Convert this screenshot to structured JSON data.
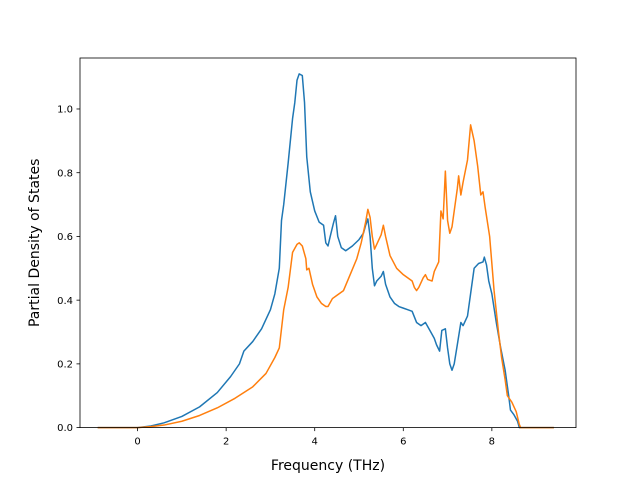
{
  "chart_data": {
    "type": "line",
    "title": "",
    "xlabel": "Frequency (THz)",
    "ylabel": "Partial Density of States",
    "xlim": [
      -1.3,
      9.9
    ],
    "ylim": [
      0.0,
      1.16
    ],
    "xticks": [
      0,
      2,
      4,
      6,
      8
    ],
    "yticks": [
      0.0,
      0.2,
      0.4,
      0.6,
      0.8,
      1.0
    ],
    "xtick_labels": [
      "0",
      "2",
      "4",
      "6",
      "8"
    ],
    "ytick_labels": [
      "0.0",
      "0.2",
      "0.4",
      "0.6",
      "0.8",
      "1.0"
    ],
    "grid": false,
    "legend": "none",
    "series": [
      {
        "color": "#1f77b4",
        "points": [
          [
            -0.9,
            0.0
          ],
          [
            0.0,
            0.0
          ],
          [
            0.3,
            0.005
          ],
          [
            0.6,
            0.015
          ],
          [
            1.0,
            0.035
          ],
          [
            1.4,
            0.065
          ],
          [
            1.8,
            0.11
          ],
          [
            2.1,
            0.16
          ],
          [
            2.3,
            0.2
          ],
          [
            2.4,
            0.24
          ],
          [
            2.6,
            0.27
          ],
          [
            2.8,
            0.31
          ],
          [
            3.0,
            0.37
          ],
          [
            3.1,
            0.42
          ],
          [
            3.2,
            0.5
          ],
          [
            3.25,
            0.65
          ],
          [
            3.3,
            0.7
          ],
          [
            3.4,
            0.83
          ],
          [
            3.5,
            0.97
          ],
          [
            3.55,
            1.02
          ],
          [
            3.6,
            1.09
          ],
          [
            3.65,
            1.11
          ],
          [
            3.72,
            1.105
          ],
          [
            3.77,
            1.02
          ],
          [
            3.82,
            0.85
          ],
          [
            3.9,
            0.74
          ],
          [
            4.0,
            0.68
          ],
          [
            4.1,
            0.645
          ],
          [
            4.2,
            0.635
          ],
          [
            4.25,
            0.58
          ],
          [
            4.3,
            0.57
          ],
          [
            4.35,
            0.6
          ],
          [
            4.42,
            0.64
          ],
          [
            4.47,
            0.665
          ],
          [
            4.52,
            0.6
          ],
          [
            4.6,
            0.565
          ],
          [
            4.7,
            0.555
          ],
          [
            4.85,
            0.57
          ],
          [
            5.0,
            0.59
          ],
          [
            5.1,
            0.61
          ],
          [
            5.15,
            0.635
          ],
          [
            5.2,
            0.655
          ],
          [
            5.25,
            0.6
          ],
          [
            5.3,
            0.5
          ],
          [
            5.35,
            0.445
          ],
          [
            5.4,
            0.46
          ],
          [
            5.5,
            0.475
          ],
          [
            5.55,
            0.49
          ],
          [
            5.6,
            0.45
          ],
          [
            5.7,
            0.41
          ],
          [
            5.8,
            0.39
          ],
          [
            5.9,
            0.38
          ],
          [
            6.0,
            0.375
          ],
          [
            6.1,
            0.37
          ],
          [
            6.2,
            0.365
          ],
          [
            6.3,
            0.33
          ],
          [
            6.4,
            0.32
          ],
          [
            6.5,
            0.33
          ],
          [
            6.6,
            0.305
          ],
          [
            6.7,
            0.28
          ],
          [
            6.75,
            0.26
          ],
          [
            6.82,
            0.24
          ],
          [
            6.87,
            0.305
          ],
          [
            6.95,
            0.31
          ],
          [
            7.0,
            0.25
          ],
          [
            7.05,
            0.2
          ],
          [
            7.1,
            0.18
          ],
          [
            7.15,
            0.2
          ],
          [
            7.22,
            0.26
          ],
          [
            7.3,
            0.33
          ],
          [
            7.35,
            0.32
          ],
          [
            7.45,
            0.35
          ],
          [
            7.52,
            0.42
          ],
          [
            7.6,
            0.5
          ],
          [
            7.7,
            0.515
          ],
          [
            7.8,
            0.52
          ],
          [
            7.83,
            0.535
          ],
          [
            7.88,
            0.51
          ],
          [
            7.93,
            0.46
          ],
          [
            8.0,
            0.42
          ],
          [
            8.1,
            0.33
          ],
          [
            8.2,
            0.25
          ],
          [
            8.3,
            0.18
          ],
          [
            8.38,
            0.1
          ],
          [
            8.42,
            0.055
          ],
          [
            8.5,
            0.04
          ],
          [
            8.58,
            0.02
          ],
          [
            8.62,
            0.0
          ],
          [
            9.4,
            0.0
          ]
        ]
      },
      {
        "color": "#ff7f0e",
        "points": [
          [
            -0.9,
            0.0
          ],
          [
            0.0,
            0.0
          ],
          [
            0.3,
            0.003
          ],
          [
            0.6,
            0.008
          ],
          [
            1.0,
            0.02
          ],
          [
            1.4,
            0.038
          ],
          [
            1.8,
            0.062
          ],
          [
            2.2,
            0.092
          ],
          [
            2.6,
            0.128
          ],
          [
            2.9,
            0.17
          ],
          [
            3.1,
            0.22
          ],
          [
            3.2,
            0.25
          ],
          [
            3.3,
            0.37
          ],
          [
            3.4,
            0.44
          ],
          [
            3.5,
            0.55
          ],
          [
            3.6,
            0.575
          ],
          [
            3.65,
            0.58
          ],
          [
            3.72,
            0.57
          ],
          [
            3.8,
            0.53
          ],
          [
            3.82,
            0.495
          ],
          [
            3.87,
            0.5
          ],
          [
            3.95,
            0.45
          ],
          [
            4.05,
            0.41
          ],
          [
            4.15,
            0.39
          ],
          [
            4.25,
            0.38
          ],
          [
            4.3,
            0.38
          ],
          [
            4.4,
            0.405
          ],
          [
            4.5,
            0.415
          ],
          [
            4.65,
            0.43
          ],
          [
            4.8,
            0.48
          ],
          [
            4.95,
            0.53
          ],
          [
            5.05,
            0.58
          ],
          [
            5.15,
            0.645
          ],
          [
            5.2,
            0.685
          ],
          [
            5.25,
            0.66
          ],
          [
            5.3,
            0.6
          ],
          [
            5.35,
            0.56
          ],
          [
            5.45,
            0.59
          ],
          [
            5.5,
            0.605
          ],
          [
            5.55,
            0.635
          ],
          [
            5.6,
            0.6
          ],
          [
            5.7,
            0.54
          ],
          [
            5.85,
            0.5
          ],
          [
            6.0,
            0.48
          ],
          [
            6.2,
            0.46
          ],
          [
            6.25,
            0.44
          ],
          [
            6.3,
            0.43
          ],
          [
            6.35,
            0.44
          ],
          [
            6.45,
            0.47
          ],
          [
            6.5,
            0.48
          ],
          [
            6.55,
            0.465
          ],
          [
            6.65,
            0.46
          ],
          [
            6.7,
            0.49
          ],
          [
            6.8,
            0.52
          ],
          [
            6.85,
            0.68
          ],
          [
            6.9,
            0.655
          ],
          [
            6.95,
            0.805
          ],
          [
            7.0,
            0.65
          ],
          [
            7.05,
            0.61
          ],
          [
            7.1,
            0.63
          ],
          [
            7.15,
            0.68
          ],
          [
            7.22,
            0.75
          ],
          [
            7.25,
            0.79
          ],
          [
            7.3,
            0.73
          ],
          [
            7.35,
            0.77
          ],
          [
            7.45,
            0.84
          ],
          [
            7.52,
            0.95
          ],
          [
            7.6,
            0.9
          ],
          [
            7.68,
            0.82
          ],
          [
            7.75,
            0.73
          ],
          [
            7.8,
            0.74
          ],
          [
            7.85,
            0.69
          ],
          [
            7.95,
            0.6
          ],
          [
            8.05,
            0.43
          ],
          [
            8.15,
            0.3
          ],
          [
            8.22,
            0.22
          ],
          [
            8.3,
            0.15
          ],
          [
            8.35,
            0.1
          ],
          [
            8.45,
            0.08
          ],
          [
            8.55,
            0.05
          ],
          [
            8.62,
            0.01
          ],
          [
            8.65,
            0.0
          ],
          [
            9.4,
            0.0
          ]
        ]
      }
    ]
  }
}
